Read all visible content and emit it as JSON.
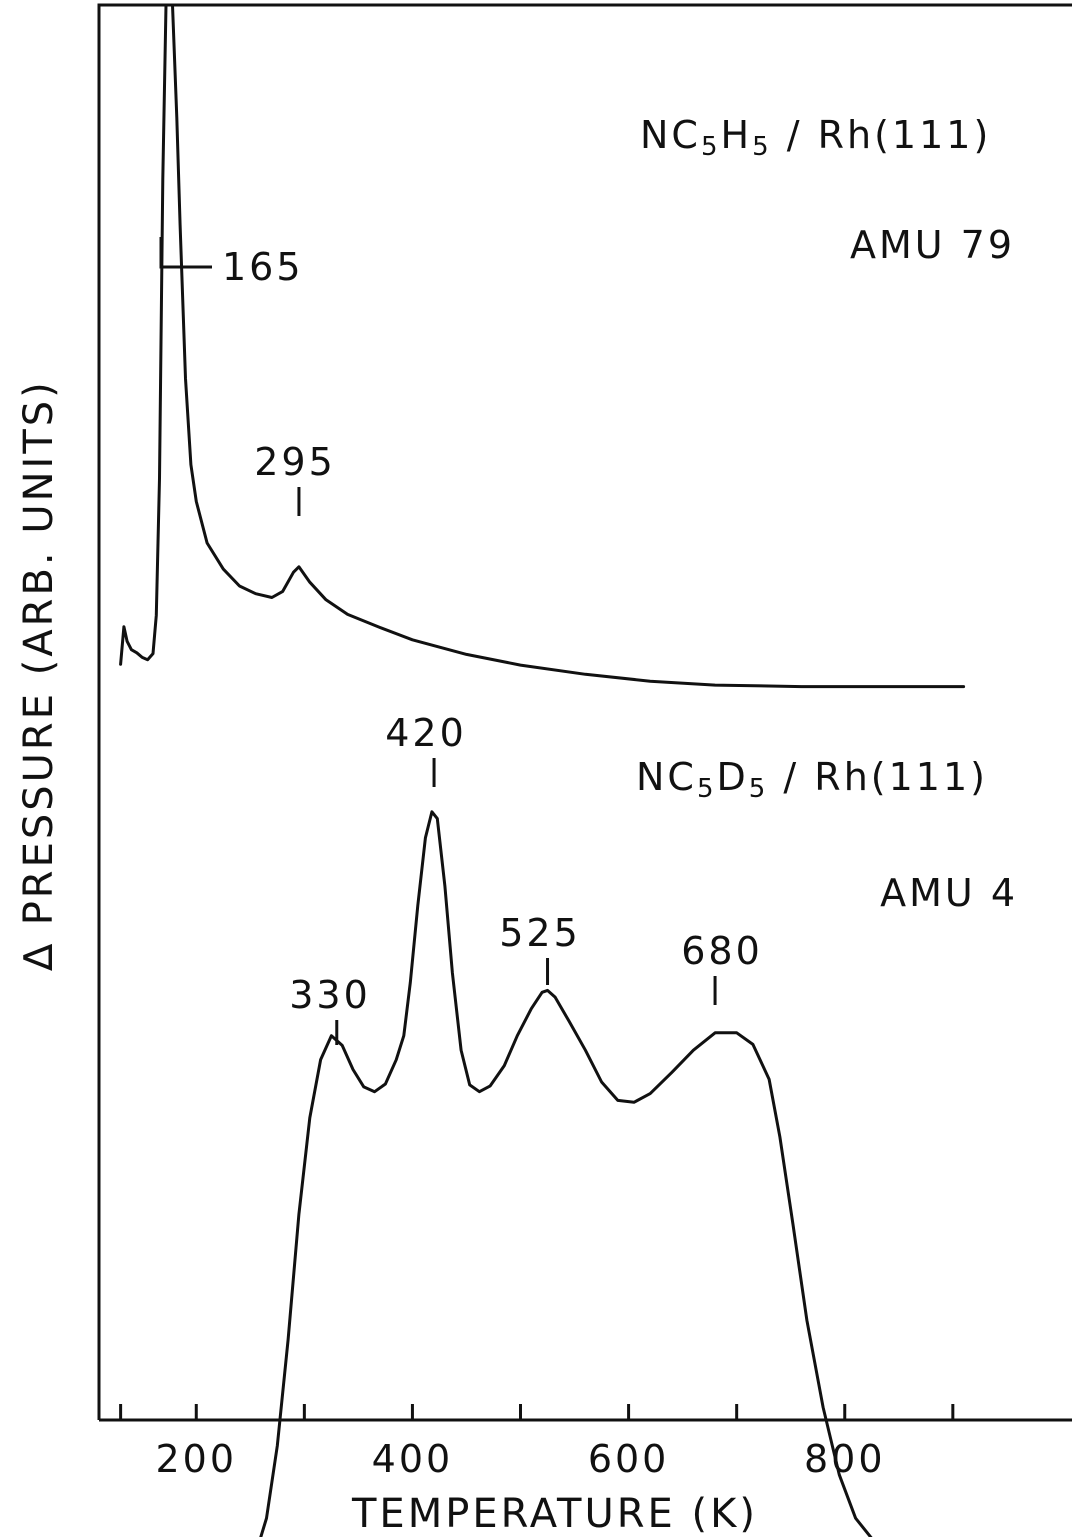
{
  "chart_data": {
    "type": "line",
    "xlabel": "TEMPERATURE (K)",
    "ylabel": "∆ PRESSURE (ARB. UNITS)",
    "xlim": [
      110,
      1010
    ],
    "ylim": [
      0,
      1
    ],
    "y_ticks_shown": false,
    "grid": false,
    "x_ticks_major": [
      200,
      400,
      600,
      800
    ],
    "x_ticks_minor": [
      130,
      300,
      500,
      700,
      900
    ],
    "series": [
      {
        "name_parts": [
          "NC",
          "5",
          "H",
          "5",
          " / Rh(111)"
        ],
        "amu_label": "AMU 79",
        "points": [
          [
            130,
            0.148
          ],
          [
            133,
            0.197
          ],
          [
            136,
            0.178
          ],
          [
            140,
            0.167
          ],
          [
            145,
            0.163
          ],
          [
            150,
            0.157
          ],
          [
            155,
            0.154
          ],
          [
            160,
            0.162
          ],
          [
            163,
            0.212
          ],
          [
            166,
            0.39
          ],
          [
            169,
            0.78
          ],
          [
            172,
            1.05
          ],
          [
            178,
            1.05
          ],
          [
            182,
            0.86
          ],
          [
            185,
            0.72
          ],
          [
            190,
            0.52
          ],
          [
            195,
            0.408
          ],
          [
            200,
            0.36
          ],
          [
            210,
            0.306
          ],
          [
            225,
            0.272
          ],
          [
            240,
            0.25
          ],
          [
            255,
            0.24
          ],
          [
            270,
            0.235
          ],
          [
            280,
            0.243
          ],
          [
            290,
            0.268
          ],
          [
            295,
            0.275
          ],
          [
            305,
            0.255
          ],
          [
            320,
            0.232
          ],
          [
            340,
            0.213
          ],
          [
            370,
            0.196
          ],
          [
            400,
            0.18
          ],
          [
            450,
            0.161
          ],
          [
            500,
            0.147
          ],
          [
            560,
            0.135
          ],
          [
            620,
            0.126
          ],
          [
            680,
            0.121
          ],
          [
            760,
            0.119
          ],
          [
            840,
            0.119
          ],
          [
            910,
            0.119
          ]
        ],
        "peak_labels": [
          {
            "label": "165",
            "x": 165
          },
          {
            "label": "295",
            "x": 295
          }
        ]
      },
      {
        "name_parts": [
          "NC",
          "5",
          "D",
          "5",
          " / Rh(111)"
        ],
        "amu_label": "AMU 4",
        "points": [
          [
            115,
            0.175
          ],
          [
            130,
            0.178
          ],
          [
            150,
            0.184
          ],
          [
            162,
            0.196
          ],
          [
            170,
            0.207
          ],
          [
            175,
            0.2
          ],
          [
            182,
            0.19
          ],
          [
            195,
            0.18
          ],
          [
            210,
            0.176
          ],
          [
            230,
            0.176
          ],
          [
            245,
            0.182
          ],
          [
            255,
            0.198
          ],
          [
            265,
            0.235
          ],
          [
            275,
            0.31
          ],
          [
            285,
            0.42
          ],
          [
            295,
            0.55
          ],
          [
            305,
            0.65
          ],
          [
            315,
            0.71
          ],
          [
            325,
            0.735
          ],
          [
            335,
            0.725
          ],
          [
            345,
            0.7
          ],
          [
            355,
            0.682
          ],
          [
            365,
            0.677
          ],
          [
            375,
            0.685
          ],
          [
            385,
            0.71
          ],
          [
            392,
            0.735
          ],
          [
            398,
            0.79
          ],
          [
            405,
            0.87
          ],
          [
            412,
            0.94
          ],
          [
            418,
            0.967
          ],
          [
            423,
            0.96
          ],
          [
            430,
            0.89
          ],
          [
            437,
            0.8
          ],
          [
            445,
            0.72
          ],
          [
            453,
            0.684
          ],
          [
            462,
            0.677
          ],
          [
            472,
            0.683
          ],
          [
            485,
            0.704
          ],
          [
            497,
            0.735
          ],
          [
            510,
            0.763
          ],
          [
            520,
            0.78
          ],
          [
            525,
            0.782
          ],
          [
            532,
            0.775
          ],
          [
            545,
            0.75
          ],
          [
            560,
            0.72
          ],
          [
            575,
            0.687
          ],
          [
            590,
            0.668
          ],
          [
            605,
            0.666
          ],
          [
            620,
            0.675
          ],
          [
            640,
            0.697
          ],
          [
            660,
            0.72
          ],
          [
            680,
            0.738
          ],
          [
            700,
            0.738
          ],
          [
            715,
            0.726
          ],
          [
            730,
            0.69
          ],
          [
            740,
            0.63
          ],
          [
            752,
            0.54
          ],
          [
            765,
            0.44
          ],
          [
            780,
            0.35
          ],
          [
            795,
            0.28
          ],
          [
            810,
            0.235
          ],
          [
            830,
            0.207
          ],
          [
            850,
            0.194
          ],
          [
            880,
            0.186
          ],
          [
            920,
            0.183
          ],
          [
            960,
            0.182
          ],
          [
            990,
            0.183
          ],
          [
            1010,
            0.181
          ]
        ],
        "peak_labels": [
          {
            "label": "330",
            "x": 330
          },
          {
            "label": "420",
            "x": 420
          },
          {
            "label": "525",
            "x": 525
          },
          {
            "label": "680",
            "x": 680
          }
        ]
      }
    ]
  }
}
